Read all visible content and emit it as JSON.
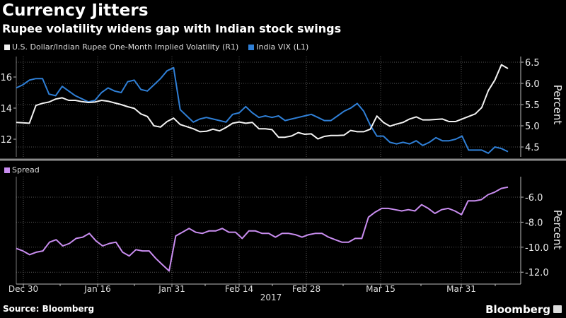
{
  "header": {
    "title": "Currency Jitters",
    "subtitle": "Rupee volatility widens gap with Indian stock swings"
  },
  "footer": {
    "source": "Source: Bloomberg",
    "logo": "Bloomberg"
  },
  "colors": {
    "background": "#000000",
    "usd_inr": "#f2f2f2",
    "india_vix": "#2f7fd6",
    "spread": "#c98df0",
    "grid": "#555555",
    "axis": "#bbbbbb"
  },
  "chart_data": [
    {
      "type": "line",
      "title": "Rupee volatility widens gap with Indian stock swings",
      "legend": [
        "U.S. Dollar/Indian Rupee One-Month Implied Volatility (R1)",
        "India VIX (L1)"
      ],
      "legend_position": "top-left",
      "x_tick_labels": [
        "Dec 30",
        "Jan 16",
        "Jan 31",
        "Feb 14",
        "Feb 28",
        "Mar 15",
        "Mar 31"
      ],
      "x_year_label": "2017",
      "left_axis": {
        "label": "",
        "ticks": [
          "12",
          "14",
          "16"
        ],
        "range": [
          11.2,
          17.0
        ]
      },
      "right_axis": {
        "label": "Percent",
        "ticks": [
          "4.5",
          "5.0",
          "5.5",
          "6.0",
          "6.5"
        ],
        "range": [
          4.35,
          6.55
        ]
      },
      "grid": true,
      "series": [
        {
          "name": "U.S. Dollar/Indian Rupee One-Month Implied Volatility (R1)",
          "axis": "right",
          "values": [
            5.08,
            5.07,
            5.06,
            5.48,
            5.53,
            5.56,
            5.63,
            5.66,
            5.6,
            5.6,
            5.57,
            5.55,
            5.56,
            5.6,
            5.58,
            5.54,
            5.5,
            5.45,
            5.41,
            5.28,
            5.22,
            5.0,
            4.97,
            5.1,
            5.18,
            5.03,
            4.98,
            4.93,
            4.86,
            4.87,
            4.92,
            4.88,
            4.96,
            5.06,
            5.09,
            5.06,
            5.08,
            4.93,
            4.93,
            4.91,
            4.73,
            4.73,
            4.76,
            4.84,
            4.8,
            4.81,
            4.69,
            4.75,
            4.77,
            4.77,
            4.78,
            4.89,
            4.86,
            4.86,
            4.92,
            5.23,
            5.08,
            4.99,
            5.04,
            5.08,
            5.16,
            5.21,
            5.14,
            5.14,
            5.15,
            5.16,
            5.1,
            5.1,
            5.16,
            5.22,
            5.28,
            5.43,
            5.83,
            6.08,
            6.44,
            6.35
          ]
        },
        {
          "name": "India VIX (L1)",
          "axis": "left",
          "values": [
            15.3,
            15.5,
            15.8,
            15.9,
            15.9,
            14.9,
            14.8,
            15.4,
            15.1,
            14.8,
            14.6,
            14.4,
            14.5,
            15.0,
            15.3,
            15.1,
            15.0,
            15.7,
            15.8,
            15.2,
            15.1,
            15.5,
            15.9,
            16.4,
            16.6,
            13.9,
            13.5,
            13.1,
            13.3,
            13.4,
            13.3,
            13.2,
            13.1,
            13.6,
            13.7,
            14.1,
            13.7,
            13.4,
            13.5,
            13.4,
            13.5,
            13.2,
            13.3,
            13.4,
            13.5,
            13.6,
            13.4,
            13.2,
            13.2,
            13.5,
            13.8,
            14.0,
            14.3,
            13.8,
            12.9,
            12.2,
            12.2,
            11.8,
            11.7,
            11.8,
            11.7,
            11.9,
            11.6,
            11.8,
            12.1,
            11.9,
            11.9,
            12.0,
            12.2,
            11.3,
            11.3,
            11.3,
            11.1,
            11.5,
            11.4,
            11.2
          ]
        }
      ]
    },
    {
      "type": "line",
      "legend": [
        "Spread"
      ],
      "legend_position": "top-left",
      "x_tick_labels": [
        "Dec 30",
        "Jan 16",
        "Jan 31",
        "Feb 14",
        "Feb 28",
        "Mar 15",
        "Mar 31"
      ],
      "x_year_label": "2017",
      "right_axis": {
        "label": "Percent",
        "ticks": [
          "-6.0",
          "-8.0",
          "-10.0",
          "-12.0"
        ],
        "range": [
          -12.4,
          -4.5
        ]
      },
      "grid": true,
      "series": [
        {
          "name": "Spread",
          "values": [
            -10.1,
            -10.3,
            -10.6,
            -10.4,
            -10.3,
            -9.6,
            -9.4,
            -9.9,
            -9.7,
            -9.3,
            -9.2,
            -8.9,
            -9.5,
            -9.9,
            -9.7,
            -9.6,
            -10.4,
            -10.7,
            -10.2,
            -10.3,
            -10.3,
            -10.9,
            -11.4,
            -11.9,
            -9.1,
            -8.8,
            -8.5,
            -8.8,
            -8.9,
            -8.7,
            -8.7,
            -8.5,
            -8.8,
            -8.8,
            -9.3,
            -8.7,
            -8.7,
            -8.9,
            -8.9,
            -9.2,
            -8.9,
            -8.9,
            -9.0,
            -9.2,
            -9.0,
            -8.9,
            -8.9,
            -9.2,
            -9.4,
            -9.6,
            -9.6,
            -9.3,
            -9.3,
            -7.6,
            -7.2,
            -6.9,
            -6.9,
            -7.0,
            -7.1,
            -7.0,
            -7.1,
            -6.6,
            -6.9,
            -7.3,
            -7.0,
            -6.9,
            -7.1,
            -7.4,
            -6.3,
            -6.3,
            -6.2,
            -5.8,
            -5.6,
            -5.3,
            -5.2
          ]
        }
      ]
    }
  ]
}
